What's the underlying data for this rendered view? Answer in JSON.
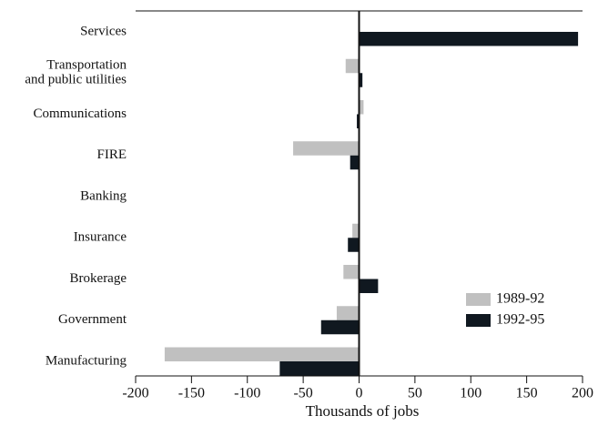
{
  "chart_data": {
    "type": "hbar",
    "x_label": "Thousands of jobs",
    "categories": [
      "Services",
      "Transportation\nand public utilities",
      "Communications",
      "FIRE",
      "Banking",
      "Insurance",
      "Brokerage",
      "Government",
      "Manufacturing"
    ],
    "series": [
      {
        "name": "1989-92",
        "color": "#c0c0c0",
        "values": [
          0,
          -12,
          4,
          -59,
          0,
          -6,
          -14,
          -20,
          -174
        ]
      },
      {
        "name": "1992-95",
        "color": "#101820",
        "values": [
          196,
          3,
          -2,
          -8,
          0,
          -10,
          17,
          -34,
          -71
        ]
      }
    ],
    "xlim": [
      -200,
      200
    ],
    "xticks": [
      -200,
      -150,
      -100,
      -50,
      0,
      50,
      100,
      150,
      200
    ],
    "legend": "lower right"
  }
}
